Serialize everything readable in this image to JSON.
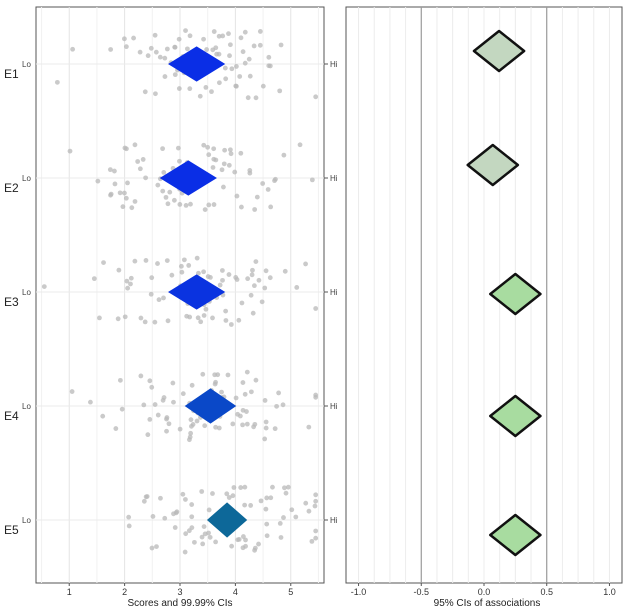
{
  "chart_data": [
    {
      "type": "scatter",
      "xlabel": "Scores and 99.99% CIs",
      "xlim": [
        0.4,
        5.6
      ],
      "xticks": [
        1,
        2,
        3,
        4,
        5
      ],
      "grid": true,
      "rows": [
        {
          "label": "E1",
          "low_label": "Lo",
          "high_label": "Hi",
          "mean": 3.3,
          "ci_half_width": 0.5,
          "color": "#0a2ee6"
        },
        {
          "label": "E2",
          "low_label": "Lo",
          "high_label": "Hi",
          "mean": 3.15,
          "ci_half_width": 0.5,
          "color": "#0a2ee6"
        },
        {
          "label": "E3",
          "low_label": "Lo",
          "high_label": "Hi",
          "mean": 3.3,
          "ci_half_width": 0.5,
          "color": "#0a33e0"
        },
        {
          "label": "E4",
          "low_label": "Lo",
          "high_label": "Hi",
          "mean": 3.55,
          "ci_half_width": 0.45,
          "color": "#0a48c8"
        },
        {
          "label": "E5",
          "low_label": "Lo",
          "high_label": "Hi",
          "mean": 3.85,
          "ci_half_width": 0.35,
          "color": "#0d6899"
        }
      ],
      "point_color": "#b8b8b8",
      "points_per_row": 80
    },
    {
      "type": "scatter",
      "xlabel": "95% CIs of associations",
      "xlim": [
        -1.1,
        1.1
      ],
      "xticks": [
        -1.0,
        -0.5,
        0.0,
        0.5,
        1.0
      ],
      "tick_labels": [
        "-1.0",
        "-0.5",
        "0.0",
        "0.5",
        "1.0"
      ],
      "reference_lines": [
        -0.5,
        0.5
      ],
      "grid": true,
      "rows": [
        {
          "label": "E1",
          "estimate": 0.12,
          "ci": [
            -0.08,
            0.32
          ],
          "color": "#c3d7c0"
        },
        {
          "label": "E2",
          "estimate": 0.07,
          "ci": [
            -0.13,
            0.27
          ],
          "color": "#c3d7c0"
        },
        {
          "label": "E3",
          "estimate": 0.25,
          "ci": [
            0.05,
            0.45
          ],
          "color": "#a8dca0"
        },
        {
          "label": "E4",
          "estimate": 0.25,
          "ci": [
            0.05,
            0.45
          ],
          "color": "#a8dca0"
        },
        {
          "label": "E5",
          "estimate": 0.25,
          "ci": [
            0.05,
            0.45
          ],
          "color": "#a8dca0"
        }
      ]
    }
  ]
}
